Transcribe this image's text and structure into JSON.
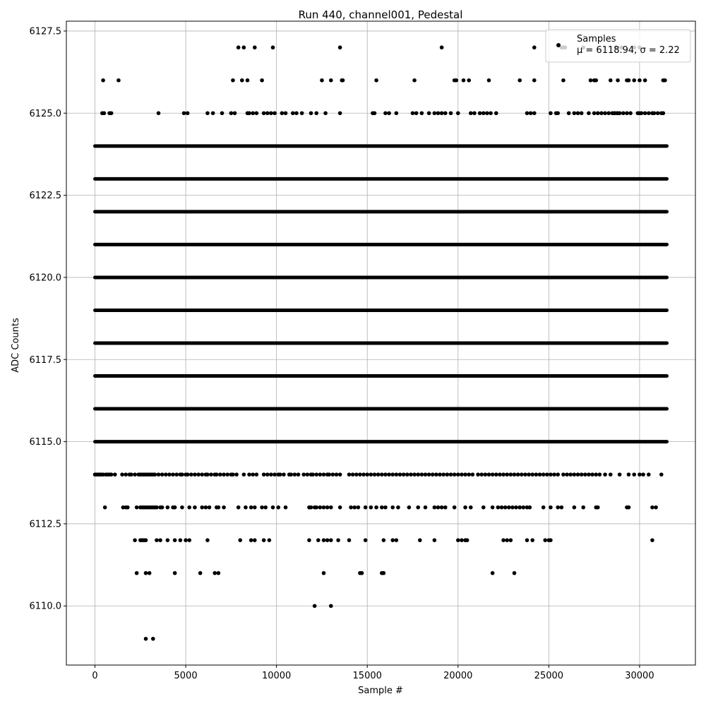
{
  "chart_data": {
    "type": "scatter",
    "title": "Run 440, channel001, Pedestal",
    "xlabel": "Sample #",
    "ylabel": "ADC Counts",
    "xlim": [
      -1575,
      33075
    ],
    "ylim": [
      6108.2,
      6127.8
    ],
    "xticks": [
      0,
      5000,
      10000,
      15000,
      20000,
      25000,
      30000
    ],
    "xtick_labels": [
      "0",
      "5000",
      "10000",
      "15000",
      "20000",
      "25000",
      "30000"
    ],
    "yticks": [
      6110.0,
      6112.5,
      6115.0,
      6117.5,
      6120.0,
      6122.5,
      6125.0,
      6127.5
    ],
    "ytick_labels": [
      "6110.0",
      "6112.5",
      "6115.0",
      "6117.5",
      "6120.0",
      "6122.5",
      "6125.0",
      "6127.5"
    ],
    "grid": true,
    "legend_position": "top-right",
    "marker_color": "#000000",
    "series": [
      {
        "name": "Samples",
        "x_range": [
          0,
          31500
        ],
        "levels": [
          {
            "y": 6114,
            "x": [
              0,
              40,
              130,
              200,
              290,
              350,
              450,
              600,
              700,
              800,
              900,
              1100,
              1500,
              1700,
              1900,
              2000,
              2200,
              2400,
              2500,
              2600,
              2700,
              2800,
              2900,
              3000,
              3100,
              3200,
              3300,
              3500,
              3700,
              3900,
              4100,
              4300,
              4500,
              4700,
              4800,
              5000,
              5100,
              5300,
              5500,
              5700,
              5900,
              6100,
              6200,
              6400,
              6600,
              6700,
              6900,
              7100,
              7300,
              7500,
              7600,
              7800,
              8200,
              8500,
              8700,
              8900,
              9300,
              9500,
              9700,
              9900,
              10100,
              10200,
              10400,
              10700,
              10800,
              11000,
              11200,
              11500,
              11700,
              11900,
              12000,
              12200,
              12400,
              12600,
              12800,
              12900,
              13100,
              13300,
              13500,
              14000,
              14200,
              14400,
              14600,
              14800,
              15000,
              15200,
              15400,
              15600,
              15800,
              16000,
              16200,
              16400,
              16600,
              16800,
              17000,
              17200,
              17400,
              17600,
              17800,
              18000,
              18200,
              18400,
              18600,
              18800,
              19000,
              19200,
              19400,
              19600,
              19800,
              20000,
              20200,
              20400,
              20600,
              20800,
              21100,
              21300,
              21500,
              21700,
              21900,
              22100,
              22300,
              22500,
              22700,
              22900,
              23100,
              23300,
              23500,
              23700,
              23900,
              24100,
              24300,
              24500,
              24700,
              24900,
              25100,
              25300,
              25500,
              25800,
              26000,
              26200,
              26400,
              26600,
              26800,
              27000,
              27200,
              27400,
              27600,
              27800,
              28100,
              28400,
              28900,
              29400,
              29700,
              30000,
              30200,
              30500,
              31200
            ]
          },
          {
            "y": 6113,
            "x": [
              550,
              1550,
              1700,
              1800,
              2300,
              2500,
              2600,
              2700,
              2800,
              2900,
              3000,
              3100,
              3200,
              3300,
              3400,
              3600,
              3700,
              4000,
              4300,
              4400,
              4800,
              5200,
              5500,
              5900,
              6100,
              6300,
              6700,
              6800,
              7100,
              7900,
              8300,
              8600,
              8800,
              9200,
              9400,
              9800,
              10100,
              10500,
              11800,
              11900,
              12100,
              12200,
              12400,
              12600,
              12800,
              13000,
              13500,
              14100,
              14300,
              14500,
              14900,
              15200,
              15500,
              15800,
              16000,
              16400,
              16700,
              17300,
              17800,
              18200,
              18700,
              18900,
              19100,
              19300,
              19800,
              20400,
              20700,
              21400,
              21900,
              22200,
              22400,
              22600,
              22800,
              23000,
              23200,
              23400,
              23600,
              23800,
              23950,
              24700,
              25100,
              25500,
              25700,
              26400,
              26900,
              27600,
              27700,
              29300,
              29400,
              30700,
              30900
            ]
          },
          {
            "y": 6112,
            "x": [
              2200,
              2500,
              2600,
              2700,
              2800,
              3400,
              3600,
              4000,
              4400,
              4700,
              5000,
              5200,
              6200,
              8000,
              8600,
              8800,
              9300,
              9600,
              11800,
              12300,
              12600,
              12800,
              13000,
              13400,
              14000,
              14900,
              15900,
              16400,
              16600,
              17900,
              18700,
              20000,
              20200,
              20400,
              20500,
              22500,
              22700,
              22900,
              23800,
              24100,
              24800,
              25000,
              25100,
              30700
            ]
          },
          {
            "y": 6111,
            "x": [
              2300,
              2800,
              3000,
              4400,
              5800,
              6600,
              6800,
              12600,
              14600,
              14700,
              15800,
              15900,
              21900,
              23100
            ]
          },
          {
            "y": 6110,
            "x": [
              12100,
              13000
            ]
          },
          {
            "y": 6109,
            "x": [
              2800,
              3200
            ]
          },
          {
            "y": 6125,
            "x": [
              400,
              500,
              800,
              900,
              3500,
              4900,
              5100,
              6200,
              6500,
              7000,
              7500,
              7700,
              8400,
              8500,
              8700,
              8900,
              9300,
              9500,
              9700,
              9900,
              10300,
              10500,
              10900,
              11100,
              11400,
              11900,
              12200,
              12700,
              13500,
              15300,
              15400,
              16000,
              16200,
              16600,
              17500,
              17700,
              18000,
              18400,
              18700,
              18900,
              19100,
              19300,
              19600,
              20000,
              20700,
              20900,
              21200,
              21400,
              21600,
              21800,
              22100,
              23800,
              24000,
              24200,
              25100,
              25400,
              25500,
              26100,
              26400,
              26600,
              26800,
              27200,
              27500,
              27700,
              27900,
              28100,
              28300,
              28500,
              28600,
              28700,
              28800,
              28900,
              29100,
              29300,
              29500,
              29900,
              30000,
              30100,
              30300,
              30500,
              30700,
              30800,
              31000,
              31200,
              31300
            ]
          },
          {
            "y": 6126,
            "x": [
              450,
              1300,
              7600,
              8100,
              8400,
              9200,
              12500,
              13000,
              13600,
              13650,
              15500,
              17600,
              19800,
              19900,
              20300,
              20600,
              21700,
              23400,
              24200,
              25800,
              27300,
              27500,
              27600,
              28400,
              28800,
              29300,
              29400,
              29700,
              30000,
              30300,
              31300,
              31400
            ]
          },
          {
            "y": 6127,
            "x": [
              7900,
              8200,
              8800,
              9800,
              13500,
              19100,
              24200,
              25700,
              25800,
              25900,
              26900,
              28700,
              29000,
              29700,
              30000
            ]
          }
        ],
        "dense_levels": [
          6115,
          6116,
          6117,
          6118,
          6119,
          6120,
          6121,
          6122,
          6123,
          6124
        ]
      }
    ]
  },
  "legend": {
    "label": "Samples",
    "stats": "μ = 6118.94, σ = 2.22"
  }
}
